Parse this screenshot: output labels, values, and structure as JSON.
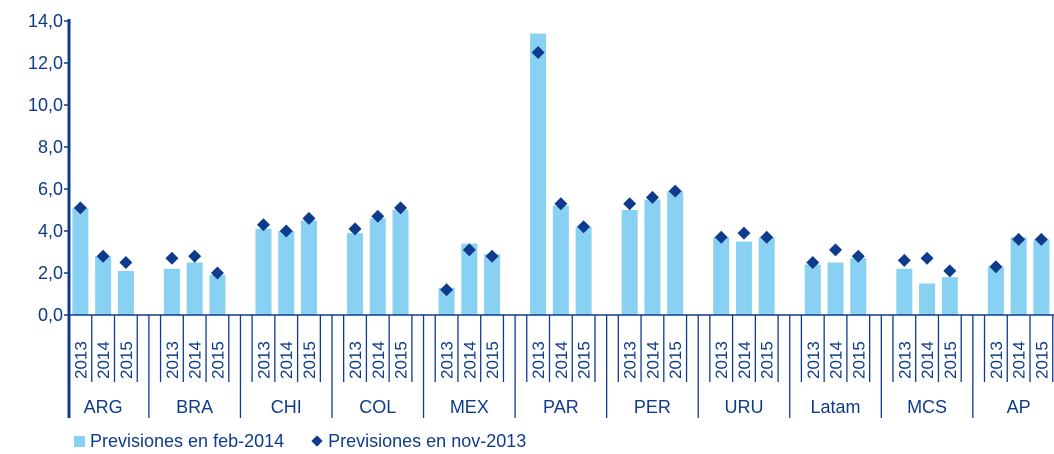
{
  "chart_data": {
    "type": "bar",
    "y_ticks": [
      "0,0",
      "2,0",
      "4,0",
      "6,0",
      "8,0",
      "10,0",
      "12,0",
      "14,0"
    ],
    "ylim": [
      0,
      14
    ],
    "grid": false,
    "legend_position": "bottom-left",
    "groups": [
      {
        "label": "ARG",
        "years": [
          "2013",
          "2014",
          "2015"
        ],
        "bars": [
          5.1,
          2.8,
          2.1
        ],
        "markers": [
          5.1,
          2.8,
          2.5
        ]
      },
      {
        "label": "BRA",
        "years": [
          "2013",
          "2014",
          "2015"
        ],
        "bars": [
          2.2,
          2.5,
          1.9
        ],
        "markers": [
          2.7,
          2.8,
          2.0
        ]
      },
      {
        "label": "CHI",
        "years": [
          "2013",
          "2014",
          "2015"
        ],
        "bars": [
          4.1,
          4.0,
          4.5
        ],
        "markers": [
          4.3,
          4.0,
          4.6
        ]
      },
      {
        "label": "COL",
        "years": [
          "2013",
          "2014",
          "2015"
        ],
        "bars": [
          3.9,
          4.6,
          5.0
        ],
        "markers": [
          4.1,
          4.7,
          5.1
        ]
      },
      {
        "label": "MEX",
        "years": [
          "2013",
          "2014",
          "2015"
        ],
        "bars": [
          1.3,
          3.4,
          2.9
        ],
        "markers": [
          1.2,
          3.1,
          2.8
        ]
      },
      {
        "label": "PAR",
        "years": [
          "2013",
          "2014",
          "2015"
        ],
        "bars": [
          13.4,
          5.2,
          4.2
        ],
        "markers": [
          12.5,
          5.3,
          4.2
        ]
      },
      {
        "label": "PER",
        "years": [
          "2013",
          "2014",
          "2015"
        ],
        "bars": [
          5.0,
          5.5,
          5.9
        ],
        "markers": [
          5.3,
          5.6,
          5.9
        ]
      },
      {
        "label": "URU",
        "years": [
          "2013",
          "2014",
          "2015"
        ],
        "bars": [
          3.7,
          3.5,
          3.7
        ],
        "markers": [
          3.7,
          3.9,
          3.7
        ]
      },
      {
        "label": "Latam",
        "years": [
          "2013",
          "2014",
          "2015"
        ],
        "bars": [
          2.4,
          2.5,
          2.7
        ],
        "markers": [
          2.5,
          3.1,
          2.8
        ]
      },
      {
        "label": "MCS",
        "years": [
          "2013",
          "2014",
          "2015"
        ],
        "bars": [
          2.2,
          1.5,
          1.8
        ],
        "markers": [
          2.6,
          2.7,
          2.1
        ]
      },
      {
        "label": "AP",
        "years": [
          "2013",
          "2014",
          "2015"
        ],
        "bars": [
          2.3,
          3.7,
          3.6
        ],
        "markers": [
          2.3,
          3.6,
          3.6
        ]
      }
    ],
    "series": [
      {
        "name": "Previsiones en feb-2014",
        "mark": "bar",
        "color": "#89d1f3"
      },
      {
        "name": "Previsiones en nov-2013",
        "mark": "diamond",
        "color": "#0f3b8c"
      }
    ]
  }
}
